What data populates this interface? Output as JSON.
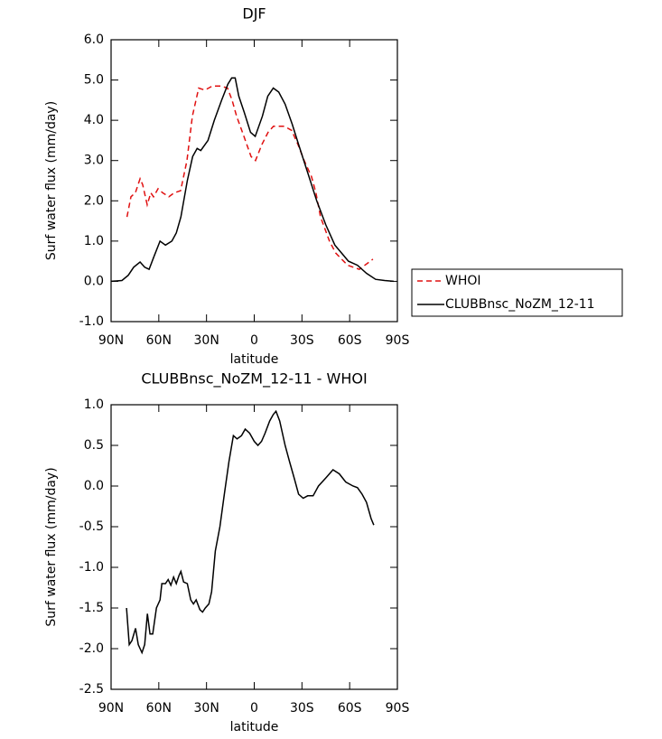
{
  "chart_data": [
    {
      "type": "line",
      "title": "DJF",
      "xlabel": "latitude",
      "ylabel": "Surf water flux (mm/day)",
      "xlim": [
        90,
        -90
      ],
      "xticks": [
        {
          "value": 90,
          "label": "90N"
        },
        {
          "value": 60,
          "label": "60N"
        },
        {
          "value": 30,
          "label": "30N"
        },
        0,
        {
          "value": -30,
          "label": "30S"
        },
        {
          "value": -60,
          "label": "60S"
        },
        {
          "value": -90,
          "label": "90S"
        }
      ],
      "ylim": [
        -1,
        6
      ],
      "yticks": [
        {
          "value": 6,
          "label": "6.0"
        },
        {
          "value": 5,
          "label": "5.0"
        },
        {
          "value": 4,
          "label": "4.0"
        },
        {
          "value": 3,
          "label": "3.0"
        },
        {
          "value": 2,
          "label": "2.0"
        },
        {
          "value": 1,
          "label": "1.0"
        },
        {
          "value": 0,
          "label": "0.0"
        },
        {
          "value": -1,
          "label": "-1.0"
        }
      ],
      "legend": "right",
      "series": [
        {
          "name": "WHOI",
          "color": "#e01010",
          "line_style": "dashed",
          "x": [
            80,
            77.5,
            74.7,
            71.8,
            70.1,
            67.3,
            65,
            63.3,
            60.5,
            57.6,
            53.7,
            50.3,
            46.3,
            42.3,
            38.9,
            34.9,
            31,
            26.4,
            20.8,
            16.8,
            13.9,
            11.1,
            6.5,
            2,
            -0.8,
            -4.8,
            -8.7,
            -12.1,
            -18.9,
            -23.5,
            -27.5,
            -31.4,
            -36,
            -38.8,
            -41.7,
            -47.3,
            -51.3,
            -58.7,
            -66.1,
            -74.6
          ],
          "values": [
            1.6,
            2.1,
            2.2,
            2.55,
            2.4,
            1.9,
            2.2,
            2.1,
            2.3,
            2.2,
            2.1,
            2.2,
            2.25,
            3.0,
            4.1,
            4.8,
            4.75,
            4.85,
            4.85,
            4.8,
            4.5,
            4.1,
            3.6,
            3.1,
            3.0,
            3.4,
            3.7,
            3.85,
            3.85,
            3.75,
            3.4,
            3.0,
            2.6,
            2.2,
            1.6,
            1.0,
            0.7,
            0.4,
            0.3,
            0.55
          ]
        },
        {
          "name": "CLUBBnsc_NoZM_12-11",
          "color": "#000000",
          "line_style": "solid",
          "x": [
            90,
            83.2,
            79.2,
            75.8,
            71.8,
            68.9,
            66.1,
            63.2,
            59.2,
            55.8,
            51.8,
            49,
            46.1,
            42.1,
            38.7,
            35.9,
            33.6,
            29.1,
            25.1,
            20.5,
            16.5,
            14.2,
            12,
            9.7,
            6.3,
            2.3,
            -0.6,
            -5.1,
            -8.5,
            -12,
            -15.4,
            -19.4,
            -23.9,
            -27.9,
            -33.6,
            -39.3,
            -45,
            -50.7,
            -59.2,
            -64.9,
            -70.6,
            -76.3,
            -82,
            -87.7
          ],
          "values": [
            0,
            0.02,
            0.15,
            0.35,
            0.48,
            0.35,
            0.3,
            0.6,
            1.0,
            0.9,
            1.0,
            1.2,
            1.6,
            2.5,
            3.1,
            3.3,
            3.25,
            3.5,
            4.0,
            4.5,
            4.9,
            5.05,
            5.05,
            4.6,
            4.2,
            3.7,
            3.6,
            4.1,
            4.6,
            4.8,
            4.7,
            4.4,
            3.9,
            3.4,
            2.7,
            2.0,
            1.4,
            0.9,
            0.5,
            0.4,
            0.2,
            0.05,
            0.02,
            0
          ]
        }
      ]
    },
    {
      "type": "line",
      "title": "CLUBBnsc_NoZM_12-11 - WHOI",
      "xlabel": "latitude",
      "ylabel": "Surf water flux (mm/day)",
      "xlim": [
        90,
        -90
      ],
      "xticks": [
        {
          "value": 90,
          "label": "90N"
        },
        {
          "value": 60,
          "label": "60N"
        },
        {
          "value": 30,
          "label": "30N"
        },
        0,
        {
          "value": -30,
          "label": "30S"
        },
        {
          "value": -60,
          "label": "60S"
        },
        {
          "value": -90,
          "label": "90S"
        }
      ],
      "ylim": [
        -2.5,
        1
      ],
      "yticks": [
        {
          "value": 1,
          "label": "1.0"
        },
        0.5,
        {
          "value": 0,
          "label": "0.0"
        },
        -0.5,
        {
          "value": -1,
          "label": "-1.0"
        },
        -1.5,
        {
          "value": -2,
          "label": "-2.0"
        },
        -2.5
      ],
      "series": [
        {
          "color": "#000000",
          "line_style": "solid",
          "x": [
            80.3,
            78.6,
            76.9,
            74.6,
            72.9,
            70.6,
            68.9,
            67.2,
            65.5,
            63.8,
            61.5,
            59.2,
            58.1,
            55.8,
            54.1,
            52.4,
            50.7,
            49,
            47.3,
            46.1,
            44.4,
            42.1,
            39.9,
            38.2,
            36.5,
            34.2,
            32.5,
            30.8,
            28.5,
            26.8,
            24.5,
            21.6,
            18.8,
            15.9,
            13.1,
            10.8,
            8,
            5.7,
            2.9,
            0,
            -2.3,
            -4.6,
            -6.8,
            -9.7,
            -12,
            -13.7,
            -16,
            -19.4,
            -22.2,
            -25.1,
            -27.9,
            -30.8,
            -33.6,
            -37,
            -40.4,
            -45,
            -49.5,
            -53.5,
            -57.5,
            -62.1,
            -64.9,
            -67.8,
            -70.6,
            -73.5,
            -75.2
          ],
          "values": [
            -1.5,
            -1.95,
            -1.9,
            -1.75,
            -1.95,
            -2.05,
            -1.95,
            -1.57,
            -1.82,
            -1.82,
            -1.5,
            -1.4,
            -1.2,
            -1.2,
            -1.15,
            -1.22,
            -1.12,
            -1.2,
            -1.1,
            -1.05,
            -1.18,
            -1.2,
            -1.4,
            -1.45,
            -1.4,
            -1.52,
            -1.55,
            -1.5,
            -1.45,
            -1.3,
            -0.8,
            -0.5,
            -0.1,
            0.3,
            0.62,
            0.58,
            0.62,
            0.7,
            0.65,
            0.55,
            0.5,
            0.55,
            0.65,
            0.8,
            0.88,
            0.92,
            0.8,
            0.5,
            0.3,
            0.1,
            -0.1,
            -0.15,
            -0.12,
            -0.12,
            0.0,
            0.1,
            0.2,
            0.15,
            0.05,
            0.0,
            -0.02,
            -0.1,
            -0.2,
            -0.4,
            -0.48
          ]
        }
      ]
    }
  ]
}
